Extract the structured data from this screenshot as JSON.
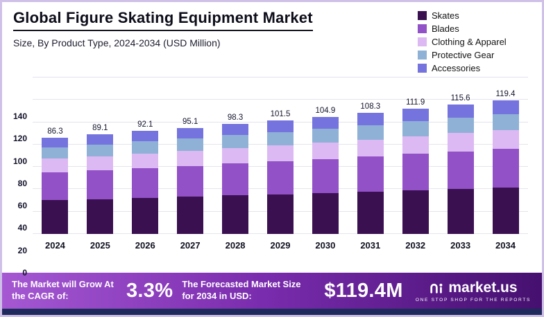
{
  "header": {
    "title": "Global Figure Skating Equipment Market",
    "subtitle": "Size, By Product Type, 2024-2034 (USD Million)"
  },
  "chart_data": {
    "type": "bar",
    "stacked": true,
    "title": "Global Figure Skating Equipment Market",
    "subtitle": "Size, By Product Type, 2024-2034 (USD Million)",
    "xlabel": "",
    "ylabel": "USD Million",
    "ylim": [
      0,
      140
    ],
    "yticks": [
      0,
      20,
      40,
      60,
      80,
      100,
      120,
      140
    ],
    "grid": true,
    "legend_position": "top-right",
    "categories": [
      "2024",
      "2025",
      "2026",
      "2027",
      "2028",
      "2029",
      "2030",
      "2031",
      "2032",
      "2033",
      "2034"
    ],
    "totals": [
      86.3,
      89.1,
      92.1,
      95.1,
      98.3,
      101.5,
      104.9,
      108.3,
      111.9,
      115.6,
      119.4
    ],
    "series": [
      {
        "name": "Skates",
        "color": "#3a1050",
        "values": [
          30.2,
          31.2,
          32.2,
          33.3,
          34.4,
          35.5,
          36.7,
          37.9,
          39.2,
          40.5,
          41.8
        ]
      },
      {
        "name": "Blades",
        "color": "#9251c6",
        "values": [
          25.0,
          25.8,
          26.7,
          27.6,
          28.5,
          29.4,
          30.4,
          31.4,
          32.5,
          33.5,
          34.6
        ]
      },
      {
        "name": "Clothing & Apparel",
        "color": "#dcb9f2",
        "values": [
          12.1,
          12.5,
          12.9,
          13.3,
          13.8,
          14.2,
          14.7,
          15.2,
          15.7,
          16.2,
          16.7
        ]
      },
      {
        "name": "Protective Gear",
        "color": "#8fb1d6",
        "values": [
          10.4,
          10.7,
          11.1,
          11.4,
          11.8,
          12.2,
          12.6,
          13.0,
          13.4,
          13.9,
          14.3
        ]
      },
      {
        "name": "Accessories",
        "color": "#7573de",
        "values": [
          8.6,
          8.9,
          9.2,
          9.5,
          9.8,
          10.2,
          10.5,
          10.8,
          11.1,
          11.5,
          12.0
        ]
      }
    ]
  },
  "banner": {
    "cagr_label": "The Market will Grow At the CAGR of:",
    "cagr_value": "3.3%",
    "forecast_label": "The Forecasted Market Size for 2034 in USD:",
    "forecast_value": "$119.4M",
    "brand": "market.us",
    "brand_tagline": "ONE STOP SHOP FOR THE REPORTS"
  }
}
